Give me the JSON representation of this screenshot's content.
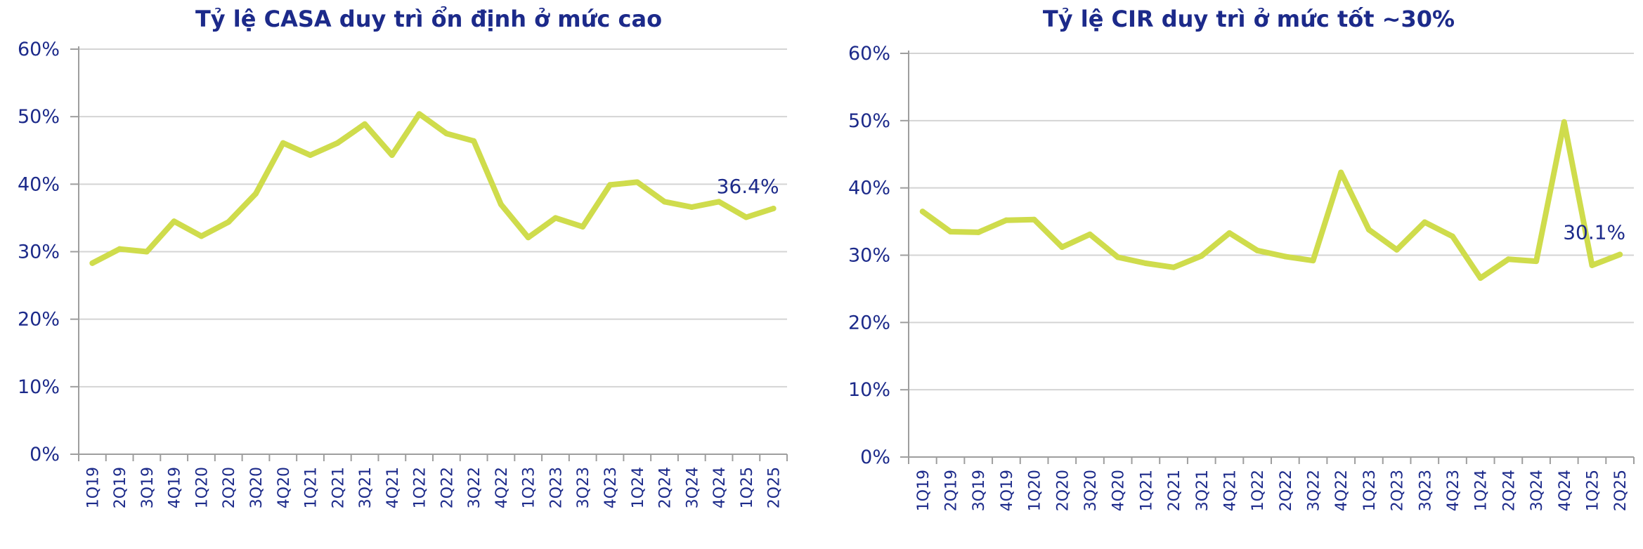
{
  "chart_data": [
    {
      "type": "line",
      "title": "Tỷ lệ CASA duy trì ổn định ở mức cao",
      "xlabel": "",
      "ylabel": "",
      "ylim": [
        0,
        60
      ],
      "yticks": [
        "0%",
        "10%",
        "20%",
        "30%",
        "40%",
        "50%",
        "60%"
      ],
      "grid": true,
      "categories": [
        "1Q19",
        "2Q19",
        "3Q19",
        "4Q19",
        "1Q20",
        "2Q20",
        "3Q20",
        "4Q20",
        "1Q21",
        "2Q21",
        "3Q21",
        "4Q21",
        "1Q22",
        "2Q22",
        "3Q22",
        "4Q22",
        "1Q23",
        "2Q23",
        "3Q23",
        "4Q23",
        "1Q24",
        "2Q24",
        "3Q24",
        "4Q24",
        "1Q25",
        "2Q25"
      ],
      "series": [
        {
          "values": [
            28.3,
            30.4,
            30.0,
            34.5,
            32.3,
            34.4,
            38.6,
            46.1,
            44.3,
            46.1,
            48.9,
            44.3,
            50.4,
            47.5,
            46.4,
            37.0,
            32.1,
            35.0,
            33.7,
            39.9,
            40.3,
            37.4,
            36.6,
            37.4,
            35.1,
            36.4
          ],
          "color": "#cfdc4c"
        }
      ],
      "annotations": [
        {
          "index": 25,
          "text": "36.4%"
        }
      ]
    },
    {
      "type": "line",
      "title": "Tỷ lệ CIR duy trì ở mức tốt ~30%",
      "xlabel": "",
      "ylabel": "",
      "ylim": [
        0,
        60
      ],
      "yticks": [
        "0%",
        "10%",
        "20%",
        "30%",
        "40%",
        "50%",
        "60%"
      ],
      "grid": true,
      "categories": [
        "1Q19",
        "2Q19",
        "3Q19",
        "4Q19",
        "1Q20",
        "2Q20",
        "3Q20",
        "4Q20",
        "1Q21",
        "2Q21",
        "3Q21",
        "4Q21",
        "1Q22",
        "2Q22",
        "3Q22",
        "4Q22",
        "1Q23",
        "2Q23",
        "3Q23",
        "4Q23",
        "1Q24",
        "2Q24",
        "3Q24",
        "4Q24",
        "1Q25",
        "2Q25"
      ],
      "series": [
        {
          "values": [
            36.5,
            33.5,
            33.4,
            35.2,
            35.3,
            31.2,
            33.1,
            29.7,
            28.8,
            28.2,
            29.9,
            33.3,
            30.7,
            29.8,
            29.2,
            42.3,
            33.8,
            30.8,
            34.9,
            32.8,
            26.6,
            29.4,
            29.1,
            49.8,
            28.5,
            30.1
          ],
          "color": "#cfdc4c"
        }
      ],
      "annotations": [
        {
          "index": 25,
          "text": "30.1%"
        }
      ]
    }
  ]
}
